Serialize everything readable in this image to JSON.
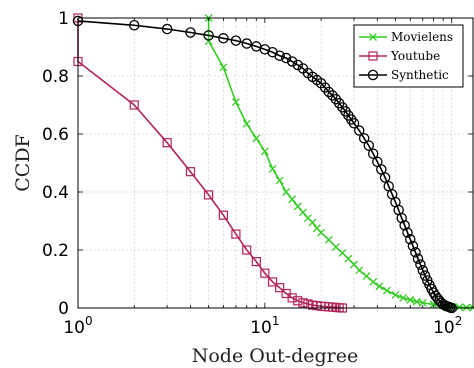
{
  "chart_data": {
    "type": "line",
    "title": "",
    "xlabel": "Node Out-degree",
    "ylabel": "CCDF",
    "xscale": "log",
    "xlim": [
      1,
      130
    ],
    "ylim": [
      0,
      1
    ],
    "x_tick_labels": [
      {
        "base": "10",
        "exp": "0",
        "value": 1
      },
      {
        "base": "10",
        "exp": "1",
        "value": 10
      },
      {
        "base": "10",
        "exp": "2",
        "value": 100
      }
    ],
    "y_ticks": [
      0,
      0.2,
      0.4,
      0.6,
      0.8,
      1
    ],
    "y_tick_labels": [
      "0",
      "0.2",
      "0.4",
      "0.6",
      "0.8",
      "1"
    ],
    "grid": true,
    "legend_position": "top-right",
    "series": [
      {
        "name": "Movielens",
        "color": "#33cc22",
        "marker": "x",
        "x": [
          5,
          5,
          6,
          7,
          8,
          9,
          10,
          11,
          12,
          13,
          14,
          15,
          16,
          17,
          18,
          19,
          20,
          22,
          24,
          26,
          28,
          30,
          32,
          35,
          38,
          41,
          45,
          50,
          55,
          60,
          65,
          70,
          80,
          90,
          100,
          110,
          120,
          130
        ],
        "y": [
          1.0,
          0.92,
          0.83,
          0.71,
          0.635,
          0.585,
          0.54,
          0.48,
          0.44,
          0.4,
          0.375,
          0.35,
          0.33,
          0.31,
          0.295,
          0.275,
          0.26,
          0.235,
          0.21,
          0.19,
          0.17,
          0.15,
          0.13,
          0.11,
          0.09,
          0.075,
          0.06,
          0.045,
          0.035,
          0.028,
          0.022,
          0.018,
          0.012,
          0.008,
          0.005,
          0.003,
          0.002,
          0.001
        ]
      },
      {
        "name": "Youtube",
        "color": "#b4245a",
        "marker": "square",
        "x": [
          1,
          1,
          2,
          3,
          4,
          5,
          6,
          7,
          8,
          9,
          10,
          11,
          12,
          13,
          14,
          15,
          16,
          17,
          18,
          19,
          20,
          21,
          22,
          23,
          24,
          25,
          26
        ],
        "y": [
          1.0,
          0.85,
          0.7,
          0.57,
          0.47,
          0.39,
          0.32,
          0.255,
          0.2,
          0.16,
          0.12,
          0.09,
          0.07,
          0.05,
          0.035,
          0.025,
          0.018,
          0.014,
          0.01,
          0.008,
          0.006,
          0.005,
          0.004,
          0.003,
          0.002,
          0.001,
          0.0
        ]
      },
      {
        "name": "Synthetic",
        "color": "#000000",
        "marker": "circle",
        "x": [
          1,
          2,
          3,
          4,
          5,
          6,
          7,
          8,
          9,
          10,
          11,
          12,
          13,
          14,
          15,
          16,
          17,
          18,
          19,
          20,
          21,
          22,
          23,
          24,
          25,
          26,
          27,
          28,
          29,
          30,
          32,
          34,
          36,
          38,
          40,
          42,
          44,
          46,
          48,
          50,
          52,
          54,
          56,
          58,
          60,
          62,
          64,
          66,
          68,
          70,
          72,
          74,
          76,
          78,
          80,
          82,
          84,
          86,
          88,
          90,
          92,
          94,
          96,
          98,
          100
        ],
        "y": [
          0.99,
          0.975,
          0.962,
          0.95,
          0.94,
          0.93,
          0.922,
          0.912,
          0.902,
          0.892,
          0.882,
          0.87,
          0.862,
          0.85,
          0.838,
          0.826,
          0.81,
          0.797,
          0.786,
          0.775,
          0.76,
          0.745,
          0.733,
          0.72,
          0.706,
          0.692,
          0.678,
          0.664,
          0.65,
          0.637,
          0.612,
          0.585,
          0.56,
          0.532,
          0.504,
          0.478,
          0.45,
          0.42,
          0.392,
          0.365,
          0.338,
          0.31,
          0.285,
          0.26,
          0.237,
          0.214,
          0.192,
          0.17,
          0.15,
          0.13,
          0.112,
          0.095,
          0.08,
          0.066,
          0.053,
          0.042,
          0.033,
          0.025,
          0.018,
          0.013,
          0.009,
          0.006,
          0.004,
          0.002,
          0.0
        ]
      }
    ]
  }
}
